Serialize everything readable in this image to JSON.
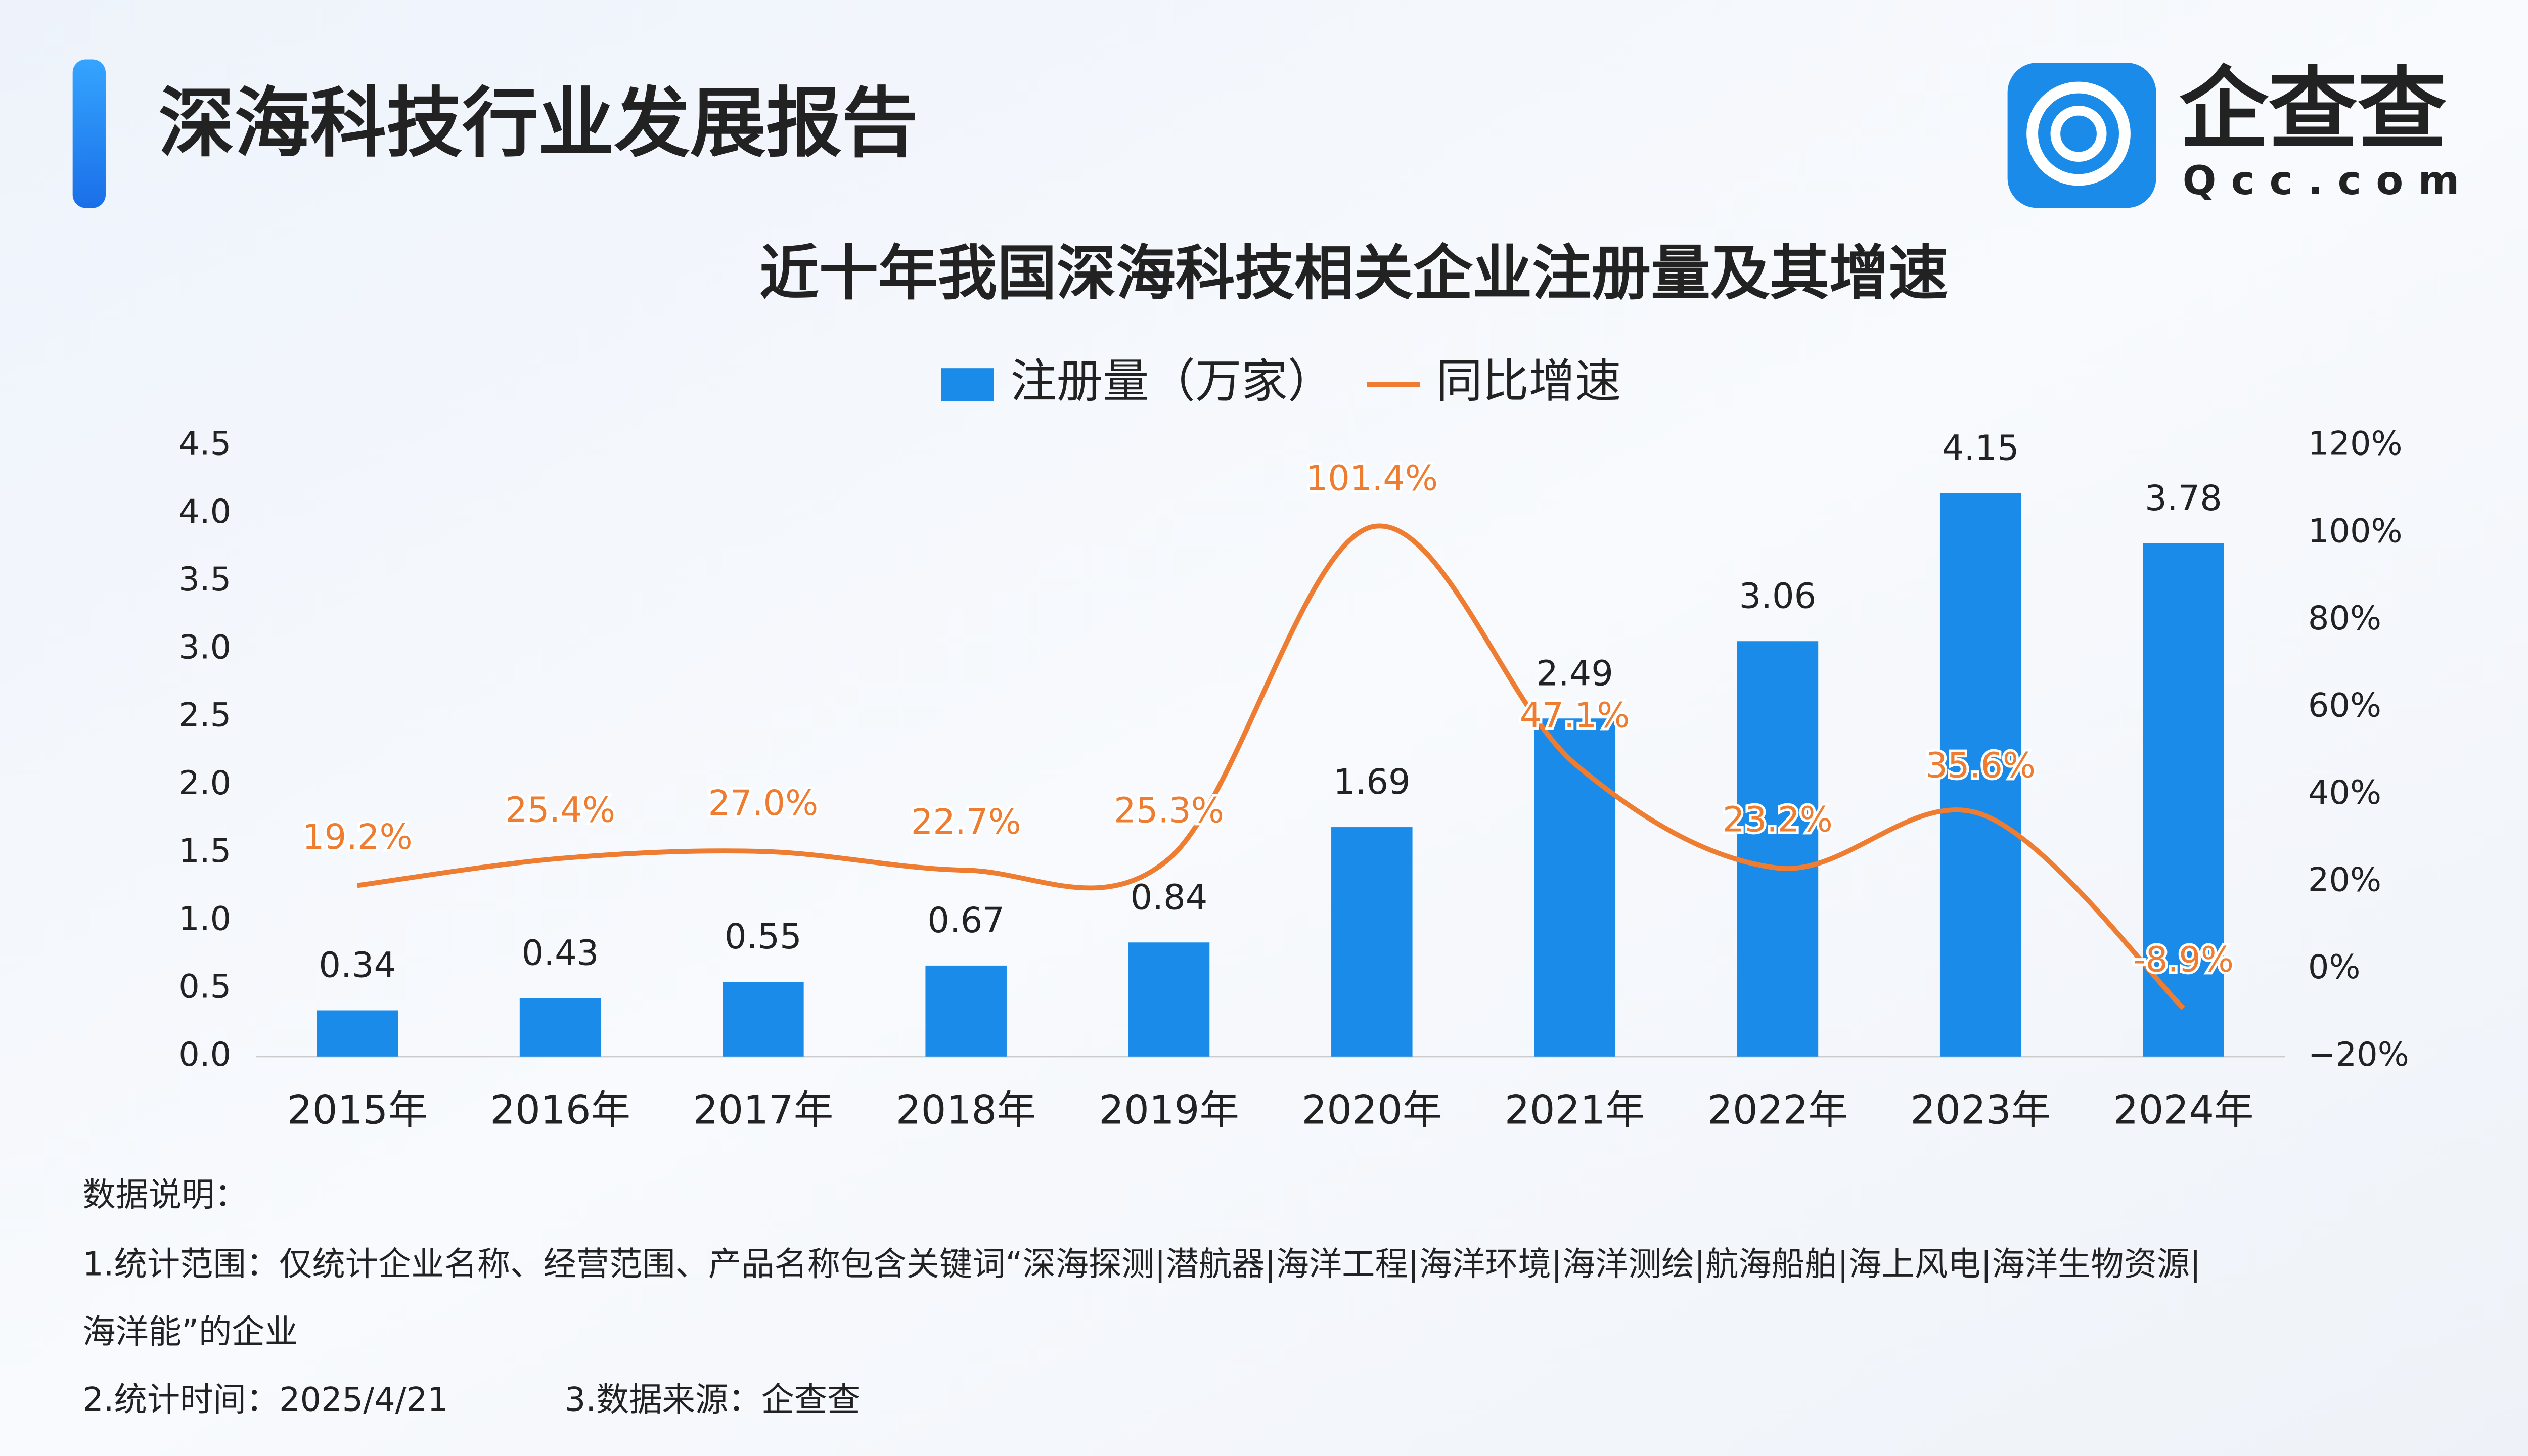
{
  "header": {
    "title": "深海科技行业发展报告",
    "logo_name": "企查查",
    "logo_site": "Qcc.com"
  },
  "chart_data": {
    "type": "bar",
    "title": "近十年我国深海科技相关企业注册量及其增速",
    "categories": [
      "2015年",
      "2016年",
      "2017年",
      "2018年",
      "2019年",
      "2020年",
      "2021年",
      "2022年",
      "2023年",
      "2024年"
    ],
    "series": [
      {
        "name": "注册量（万家）",
        "type": "bar",
        "color": "#1a8be8",
        "values": [
          0.34,
          0.43,
          0.55,
          0.67,
          0.84,
          1.69,
          2.49,
          3.06,
          4.15,
          3.78
        ]
      },
      {
        "name": "同比增速",
        "type": "line",
        "axis": "y2",
        "color": "#ee7d31",
        "values": [
          19.2,
          25.4,
          27.0,
          22.7,
          25.3,
          101.4,
          47.1,
          23.2,
          35.6,
          -8.9
        ],
        "value_labels": [
          "19.2%",
          "25.4%",
          "27.0%",
          "22.7%",
          "25.3%",
          "101.4%",
          "47.1%",
          "23.2%",
          "35.6%",
          "-8.9%"
        ]
      }
    ],
    "ylim": [
      0,
      4.5
    ],
    "yticks": [
      {
        "value": 0,
        "label": "0.0"
      },
      0.5,
      {
        "value": 1,
        "label": "1.0"
      },
      1.5,
      {
        "value": 2,
        "label": "2.0"
      },
      2.5,
      {
        "value": 3,
        "label": "3.0"
      },
      3.5,
      {
        "value": 4,
        "label": "4.0"
      },
      4.5
    ],
    "y2lim": [
      -20,
      120
    ],
    "y2ticks": [
      {
        "value": -20,
        "label": "−20%"
      },
      {
        "value": 0,
        "label": "0%"
      },
      {
        "value": 20,
        "label": "20%"
      },
      {
        "value": 40,
        "label": "40%"
      },
      {
        "value": 60,
        "label": "60%"
      },
      {
        "value": 80,
        "label": "80%"
      },
      {
        "value": 100,
        "label": "100%"
      },
      {
        "value": 120,
        "label": "120%"
      }
    ],
    "grid": false,
    "legend": "top"
  },
  "notes": {
    "heading": "数据说明：",
    "lines": [
      "1.统计范围：仅统计企业名称、经营范围、产品名称包含关键词“深海探测|潜航器|海洋工程|海洋环境|海洋测绘|航海船舶|海上风电|海洋生物资源|",
      "海洋能”的企业"
    ],
    "time": "2.统计时间：2025/4/21",
    "source": "3.数据来源：企查查"
  }
}
